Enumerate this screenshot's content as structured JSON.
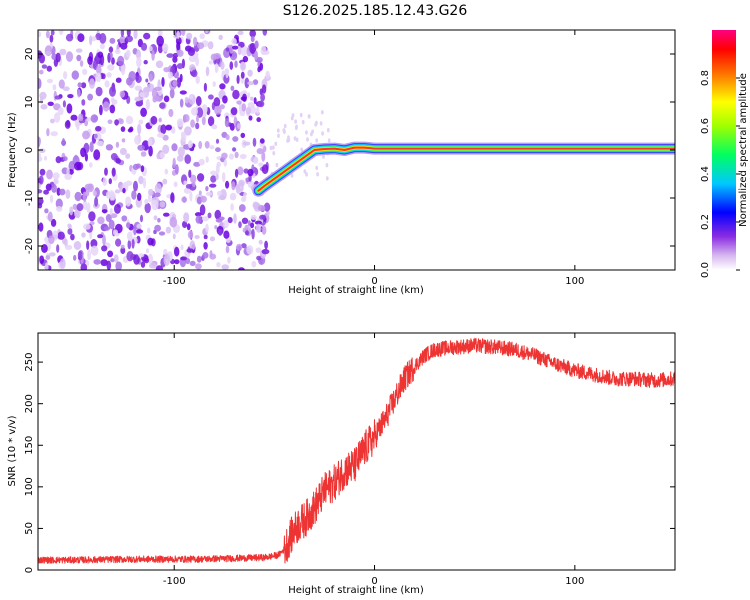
{
  "title": "S126.2025.185.12.43.G26",
  "chart_data": [
    {
      "type": "heatmap",
      "xlabel": "Height of straight line (km)",
      "ylabel": "Frequency (Hz)",
      "xlim": [
        -168,
        150
      ],
      "ylim": [
        -25,
        25
      ],
      "xticks": [
        -100,
        0,
        100
      ],
      "yticks": [
        -20,
        -10,
        0,
        10,
        20
      ],
      "noise_region_x": [
        -168,
        -52
      ],
      "ridge": {
        "x": [
          -58,
          -55,
          -50,
          -45,
          -40,
          -35,
          -30,
          -25,
          -20,
          -15,
          -10,
          -5,
          0,
          50,
          100,
          150
        ],
        "y": [
          -8.5,
          -7.5,
          -6,
          -4.5,
          -3,
          -1.5,
          0,
          0.2,
          0.3,
          0,
          0.5,
          0.5,
          0.3,
          0.3,
          0.3,
          0.3
        ]
      },
      "colorbar": {
        "label": "Normalized spectral amplitude",
        "ticks": [
          "0.0",
          "0.2",
          "0.4",
          "0.6",
          "0.8"
        ],
        "range": [
          0,
          1
        ],
        "colormap": [
          "#ffffff",
          "#8a2be2",
          "#0000ff",
          "#00ffff",
          "#00ff00",
          "#ffff00",
          "#ff0000",
          "#ff0080"
        ]
      }
    },
    {
      "type": "line",
      "xlabel": "Height of straight line (km)",
      "ylabel": "SNR (10 * v/v)",
      "xlim": [
        -168,
        150
      ],
      "ylim": [
        0,
        285
      ],
      "xticks": [
        -100,
        0,
        100
      ],
      "yticks": [
        0,
        50,
        100,
        150,
        200,
        250
      ],
      "color": "#ee3333",
      "series": [
        {
          "x": [
            -168,
            -150,
            -120,
            -90,
            -70,
            -55,
            -48,
            -45,
            -42,
            -38,
            -35,
            -30,
            -25,
            -20,
            -15,
            -10,
            -5,
            0,
            5,
            10,
            15,
            20,
            25,
            30,
            40,
            50,
            60,
            70,
            80,
            90,
            100,
            110,
            120,
            130,
            140,
            150
          ],
          "y": [
            12,
            12,
            13,
            13,
            14,
            15,
            18,
            25,
            40,
            55,
            60,
            75,
            95,
            105,
            120,
            125,
            145,
            160,
            180,
            205,
            230,
            245,
            258,
            265,
            268,
            270,
            268,
            265,
            258,
            248,
            240,
            235,
            230,
            230,
            228,
            230
          ]
        }
      ]
    }
  ]
}
